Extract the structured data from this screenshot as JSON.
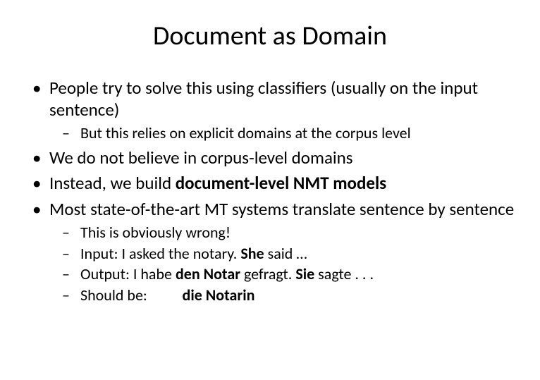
{
  "title": "Document as Domain",
  "bullets": {
    "b1": "People try to solve this using classifiers (usually on the input sentence)",
    "b1_sub1": "But this relies on explicit domains at the corpus level",
    "b2": "We do not believe in corpus-level domains",
    "b3_pre": "Instead, we build ",
    "b3_bold": "document-level NMT models",
    "b4": "Most state-of-the-art MT systems translate sentence by sentence",
    "b4_sub1": "This is obviously wrong!",
    "b4_sub2_pre": "Input: I asked the notary. ",
    "b4_sub2_bold": "She",
    "b4_sub2_post": " said …",
    "b4_sub3_pre": "Output: I habe ",
    "b4_sub3_bold1": "den Notar",
    "b4_sub3_mid": " gefragt. ",
    "b4_sub3_bold2": "Sie",
    "b4_sub3_post": " sagte . . .",
    "b4_sub4_pre": "Should be:          ",
    "b4_sub4_bold": "die Notarin"
  },
  "style": {
    "background": "#ffffff",
    "text_color": "#000000",
    "title_fontsize": 38,
    "level1_fontsize": 25,
    "level2_fontsize": 22,
    "font_family": "Calibri"
  }
}
